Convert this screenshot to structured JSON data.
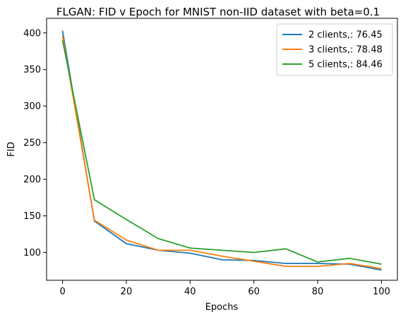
{
  "chart_data": {
    "type": "line",
    "title": "FLGAN: FID v Epoch for MNIST non-IID dataset with beta=0.1",
    "xlabel": "Epochs",
    "ylabel": "FID",
    "xlim": [
      -5,
      105
    ],
    "ylim": [
      62,
      420
    ],
    "xticks": [
      0,
      20,
      40,
      60,
      80,
      100
    ],
    "yticks": [
      100,
      150,
      200,
      250,
      300,
      350,
      400
    ],
    "grid": false,
    "legend_position": "top-right",
    "x": [
      0,
      10,
      20,
      30,
      40,
      50,
      60,
      70,
      80,
      90,
      100
    ],
    "series": [
      {
        "name": "2 clients,: 76.45",
        "color": "#1f77b4",
        "values": [
          403,
          143,
          112,
          103,
          99,
          90,
          89,
          85,
          85,
          84,
          76
        ]
      },
      {
        "name": "3 clients,: 78.48",
        "color": "#ff7f0e",
        "values": [
          396,
          144,
          117,
          103,
          103,
          95,
          88,
          81,
          81,
          85,
          78
        ]
      },
      {
        "name": "5 clients,: 84.46",
        "color": "#2ca02c",
        "values": [
          390,
          172,
          145,
          119,
          106,
          103,
          100,
          105,
          87,
          92,
          84
        ]
      }
    ]
  }
}
